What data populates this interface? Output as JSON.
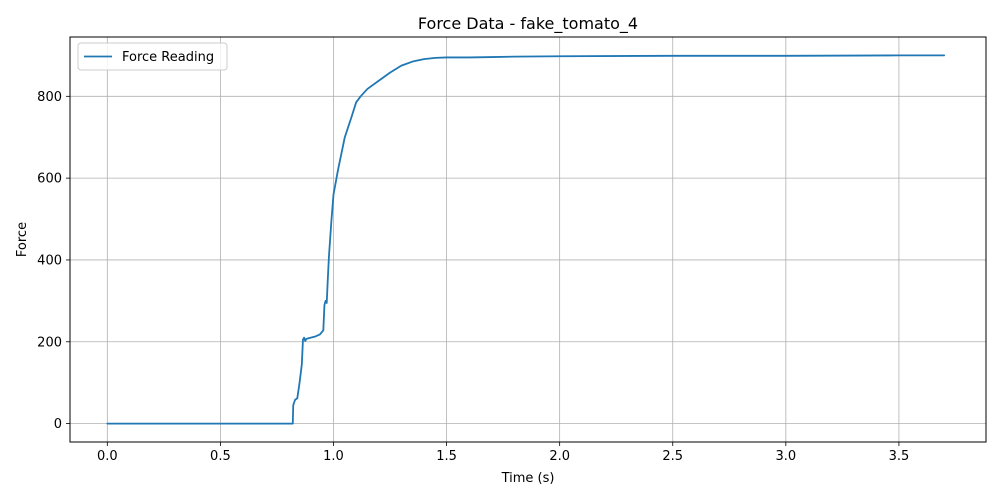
{
  "chart_data": {
    "type": "line",
    "title": "Force Data - fake_tomato_4",
    "xlabel": "Time (s)",
    "ylabel": "Force",
    "xlim": [
      -0.165,
      3.885
    ],
    "ylim": [
      -45,
      945
    ],
    "x_ticks": [
      0.0,
      0.5,
      1.0,
      1.5,
      2.0,
      2.5,
      3.0,
      3.5
    ],
    "x_tick_labels": [
      "0.0",
      "0.5",
      "1.0",
      "1.5",
      "2.0",
      "2.5",
      "3.0",
      "3.5"
    ],
    "y_ticks": [
      0,
      200,
      400,
      600,
      800
    ],
    "y_tick_labels": [
      "0",
      "200",
      "400",
      "600",
      "800"
    ],
    "grid": true,
    "legend_position": "top-left",
    "series": [
      {
        "name": "Force Reading",
        "color": "#1f77b4",
        "x": [
          0.0,
          0.82,
          0.822,
          0.83,
          0.84,
          0.85,
          0.86,
          0.865,
          0.87,
          0.875,
          0.88,
          0.9,
          0.92,
          0.94,
          0.955,
          0.96,
          0.965,
          0.97,
          0.975,
          0.98,
          0.985,
          0.99,
          1.0,
          1.02,
          1.05,
          1.08,
          1.1,
          1.12,
          1.15,
          1.2,
          1.25,
          1.3,
          1.35,
          1.4,
          1.45,
          1.5,
          1.6,
          1.7,
          1.8,
          2.0,
          2.5,
          3.0,
          3.5,
          3.7
        ],
        "y": [
          0,
          0,
          45,
          58,
          62,
          100,
          145,
          205,
          210,
          202,
          207,
          210,
          213,
          218,
          228,
          290,
          300,
          295,
          355,
          410,
          450,
          490,
          560,
          620,
          700,
          750,
          785,
          800,
          818,
          838,
          858,
          875,
          885,
          891,
          894,
          895,
          895,
          896,
          897,
          898,
          899,
          899,
          900,
          900
        ]
      }
    ]
  }
}
